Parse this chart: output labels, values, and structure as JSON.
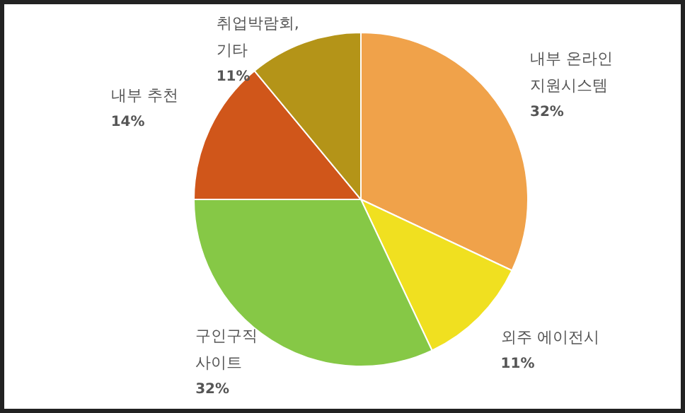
{
  "chart_data": {
    "type": "pie",
    "categories": [
      "내부 온라인\n지원시스템",
      "외주 에이전시",
      "구인구직\n사이트",
      "내부 추천",
      "취업박람회,\n기타"
    ],
    "values": [
      32,
      11,
      32,
      14,
      11
    ],
    "colors": [
      "#f0a24a",
      "#f0e020",
      "#86c846",
      "#d0561a",
      "#b49418"
    ],
    "value_labels": [
      "32%",
      "11%",
      "32%",
      "14%",
      "11%"
    ]
  }
}
